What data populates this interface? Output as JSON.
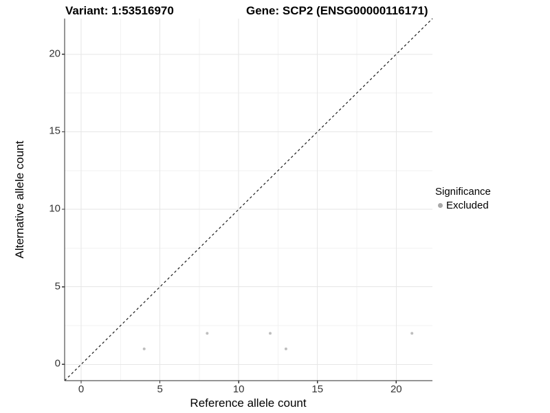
{
  "titles": {
    "variant": "Variant: 1:53516970",
    "gene": "Gene: SCP2 (ENSG00000116171)"
  },
  "axes": {
    "x": {
      "label": "Reference allele count"
    },
    "y": {
      "label": "Alternative allele count"
    }
  },
  "legend": {
    "title": "Significance",
    "items": [
      {
        "label": "Excluded",
        "swatch_color": "#a9a9a9"
      }
    ]
  },
  "colors": {
    "background": "#ffffff",
    "grid_major": "#e6e6e6",
    "grid_minor": "#f2f2f2",
    "axis_line": "#2b2b2b",
    "tick_mark": "#333333",
    "identity_line": "#1a1a1a",
    "point": "#bebebe"
  },
  "chart_data": {
    "type": "scatter",
    "title": "Variant: 1:53516970   |   Gene: SCP2 (ENSG00000116171)",
    "xlabel": "Reference allele count",
    "ylabel": "Alternative allele count",
    "xlim": [
      -1.05,
      22.3
    ],
    "ylim": [
      -1.05,
      22.3
    ],
    "x_ticks": [
      0,
      5,
      10,
      15,
      20
    ],
    "y_ticks": [
      0,
      5,
      10,
      15,
      20
    ],
    "x_minor_ticks": [
      2.5,
      7.5,
      12.5,
      17.5
    ],
    "y_minor_ticks": [
      2.5,
      7.5,
      12.5,
      17.5
    ],
    "grid": true,
    "legend_position": "right",
    "series": [
      {
        "name": "Excluded",
        "color": "#bebebe",
        "points": [
          {
            "x": 4,
            "y": 1
          },
          {
            "x": 8,
            "y": 2
          },
          {
            "x": 12,
            "y": 2
          },
          {
            "x": 13,
            "y": 1
          },
          {
            "x": 21,
            "y": 2
          }
        ]
      }
    ],
    "reference_line": {
      "kind": "identity",
      "style": "dashed",
      "slope": 1,
      "intercept": 0
    }
  }
}
